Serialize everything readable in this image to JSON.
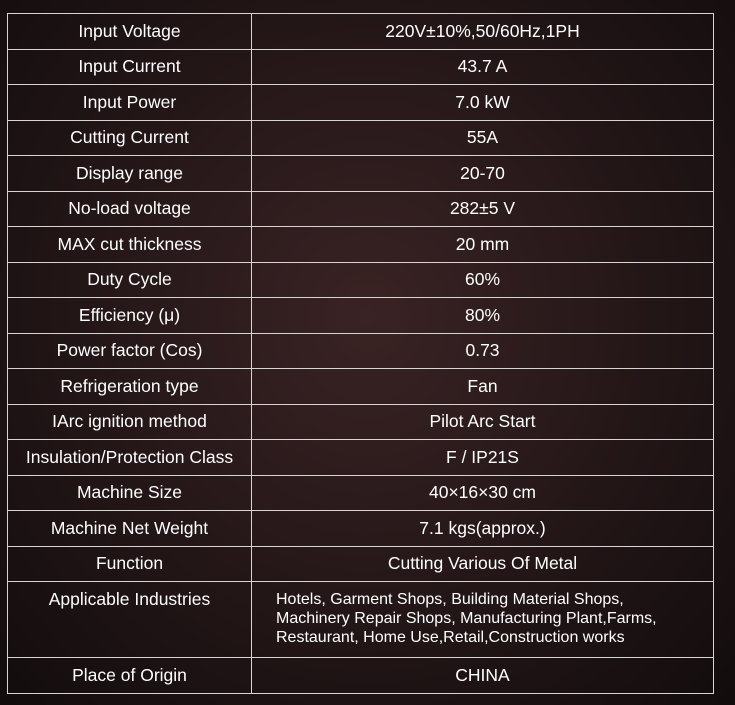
{
  "specs": [
    {
      "label": "Input Voltage",
      "value": "220V±10%,50/60Hz,1PH"
    },
    {
      "label": "Input Current",
      "value": "43.7 A"
    },
    {
      "label": "Input Power",
      "value": "7.0 kW"
    },
    {
      "label": "Cutting Current",
      "value": "55A"
    },
    {
      "label": "Display range",
      "value": "20-70"
    },
    {
      "label": "No-load voltage",
      "value": "282±5 V"
    },
    {
      "label": "MAX cut thickness",
      "value": "20 mm"
    },
    {
      "label": "Duty Cycle",
      "value": "60%"
    },
    {
      "label": "Efficiency (μ)",
      "value": "80%"
    },
    {
      "label": "Power factor (Cos)",
      "value": "0.73"
    },
    {
      "label": "Refrigeration type",
      "value": "Fan"
    },
    {
      "label": "IArc ignition method",
      "value": "Pilot Arc Start"
    },
    {
      "label": "Insulation/Protection Class",
      "value": "F / IP21S"
    },
    {
      "label": "Machine Size",
      "value": "40×16×30 cm"
    },
    {
      "label": "Machine Net Weight",
      "value": "7.1 kgs(approx.)"
    },
    {
      "label": "Function",
      "value": "Cutting Various Of Metal"
    },
    {
      "label": "Applicable Industries",
      "value": "Hotels, Garment Shops, Building Material Shops,\nMachinery Repair Shops, Manufacturing Plant,Farms,\nRestaurant, Home Use,Retail,Construction works"
    },
    {
      "label": "Place of Origin",
      "value": "CHINA"
    }
  ]
}
